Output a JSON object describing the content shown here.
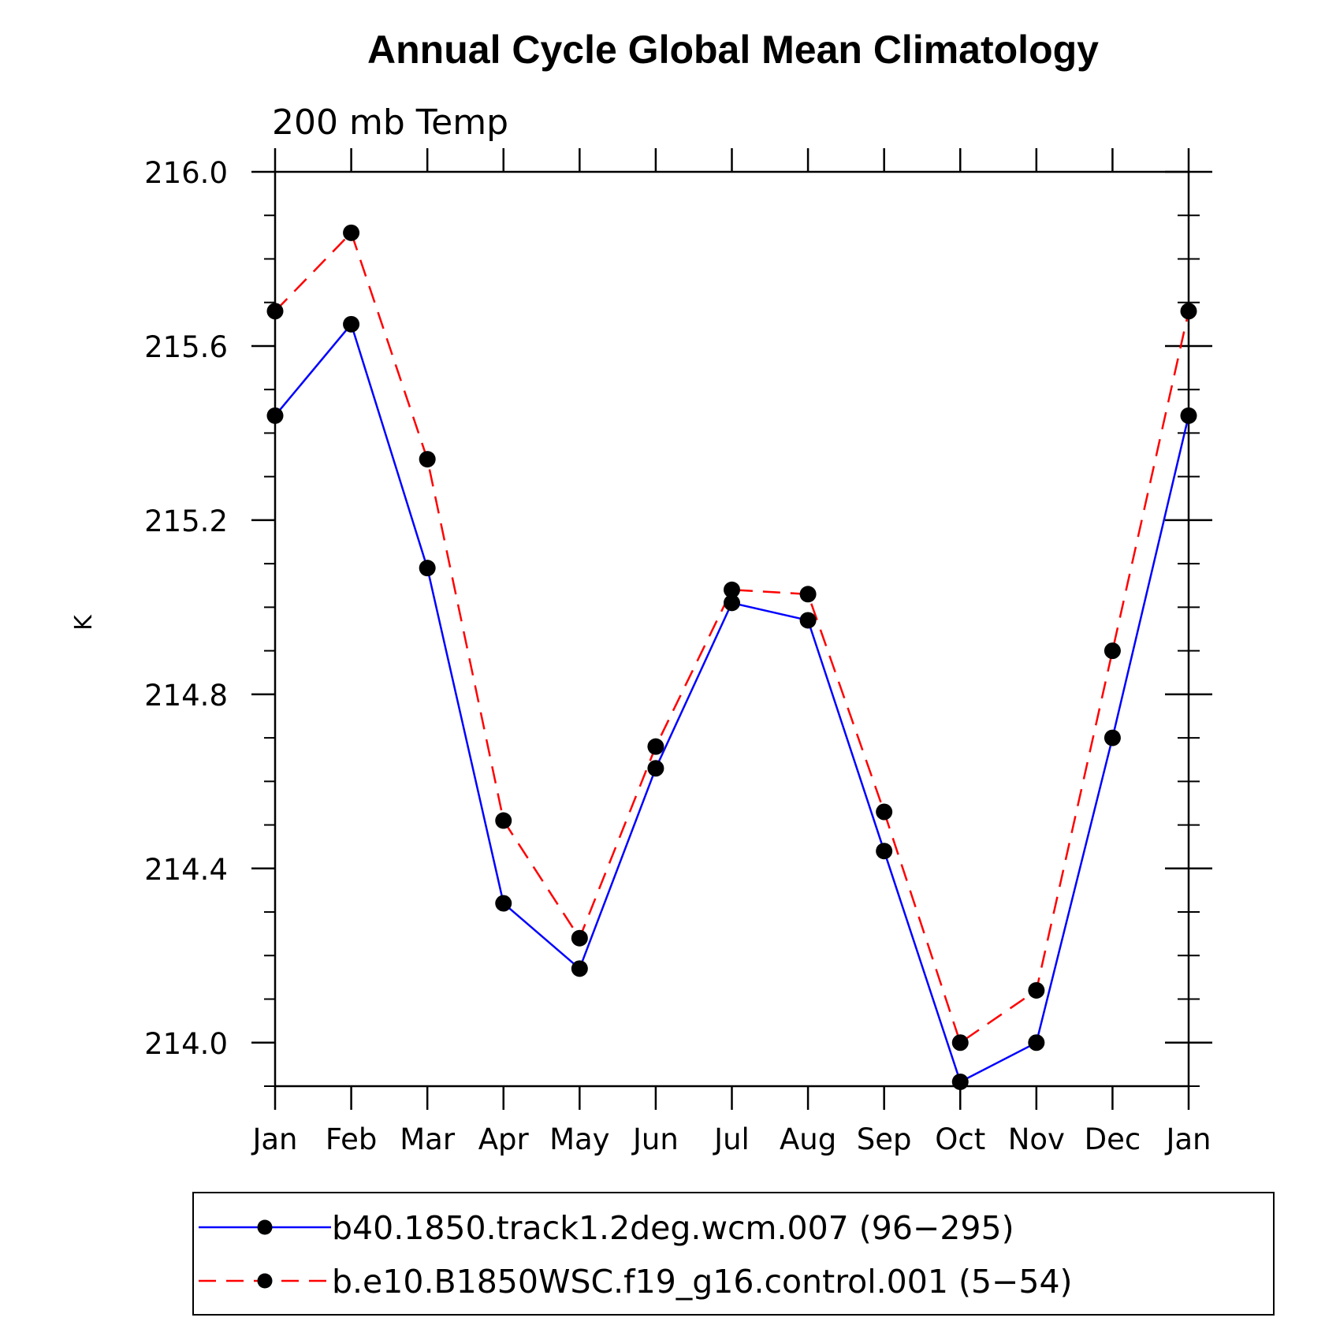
{
  "chart_data": {
    "type": "line",
    "title": "Annual Cycle Global Mean Climatology",
    "subtitle": "200 mb Temp",
    "ylabel": "K",
    "xlabel": "",
    "categories": [
      "Jan",
      "Feb",
      "Mar",
      "Apr",
      "May",
      "Jun",
      "Jul",
      "Aug",
      "Sep",
      "Oct",
      "Nov",
      "Dec",
      "Jan"
    ],
    "ylim": [
      213.9,
      216.0
    ],
    "yticks": [
      214.0,
      214.4,
      214.8,
      215.2,
      215.6,
      216.0
    ],
    "ytick_labels": [
      "214.0",
      "214.4",
      "214.8",
      "215.2",
      "215.6",
      "216.0"
    ],
    "series": [
      {
        "name": "b40.1850.track1.2deg.wcm.007 (96−295)",
        "color": "#0000ff",
        "dash": "solid",
        "values": [
          215.44,
          215.65,
          215.09,
          214.32,
          214.17,
          214.63,
          215.01,
          214.97,
          214.44,
          213.91,
          214.0,
          214.7,
          215.44
        ]
      },
      {
        "name": "b.e10.B1850WSC.f19_g16.control.001 (5−54)",
        "color": "#ff0000",
        "dash": "dashed",
        "values": [
          215.68,
          215.86,
          215.34,
          214.51,
          214.24,
          214.68,
          215.04,
          215.03,
          214.53,
          214.0,
          214.12,
          214.9,
          215.68
        ]
      }
    ]
  }
}
